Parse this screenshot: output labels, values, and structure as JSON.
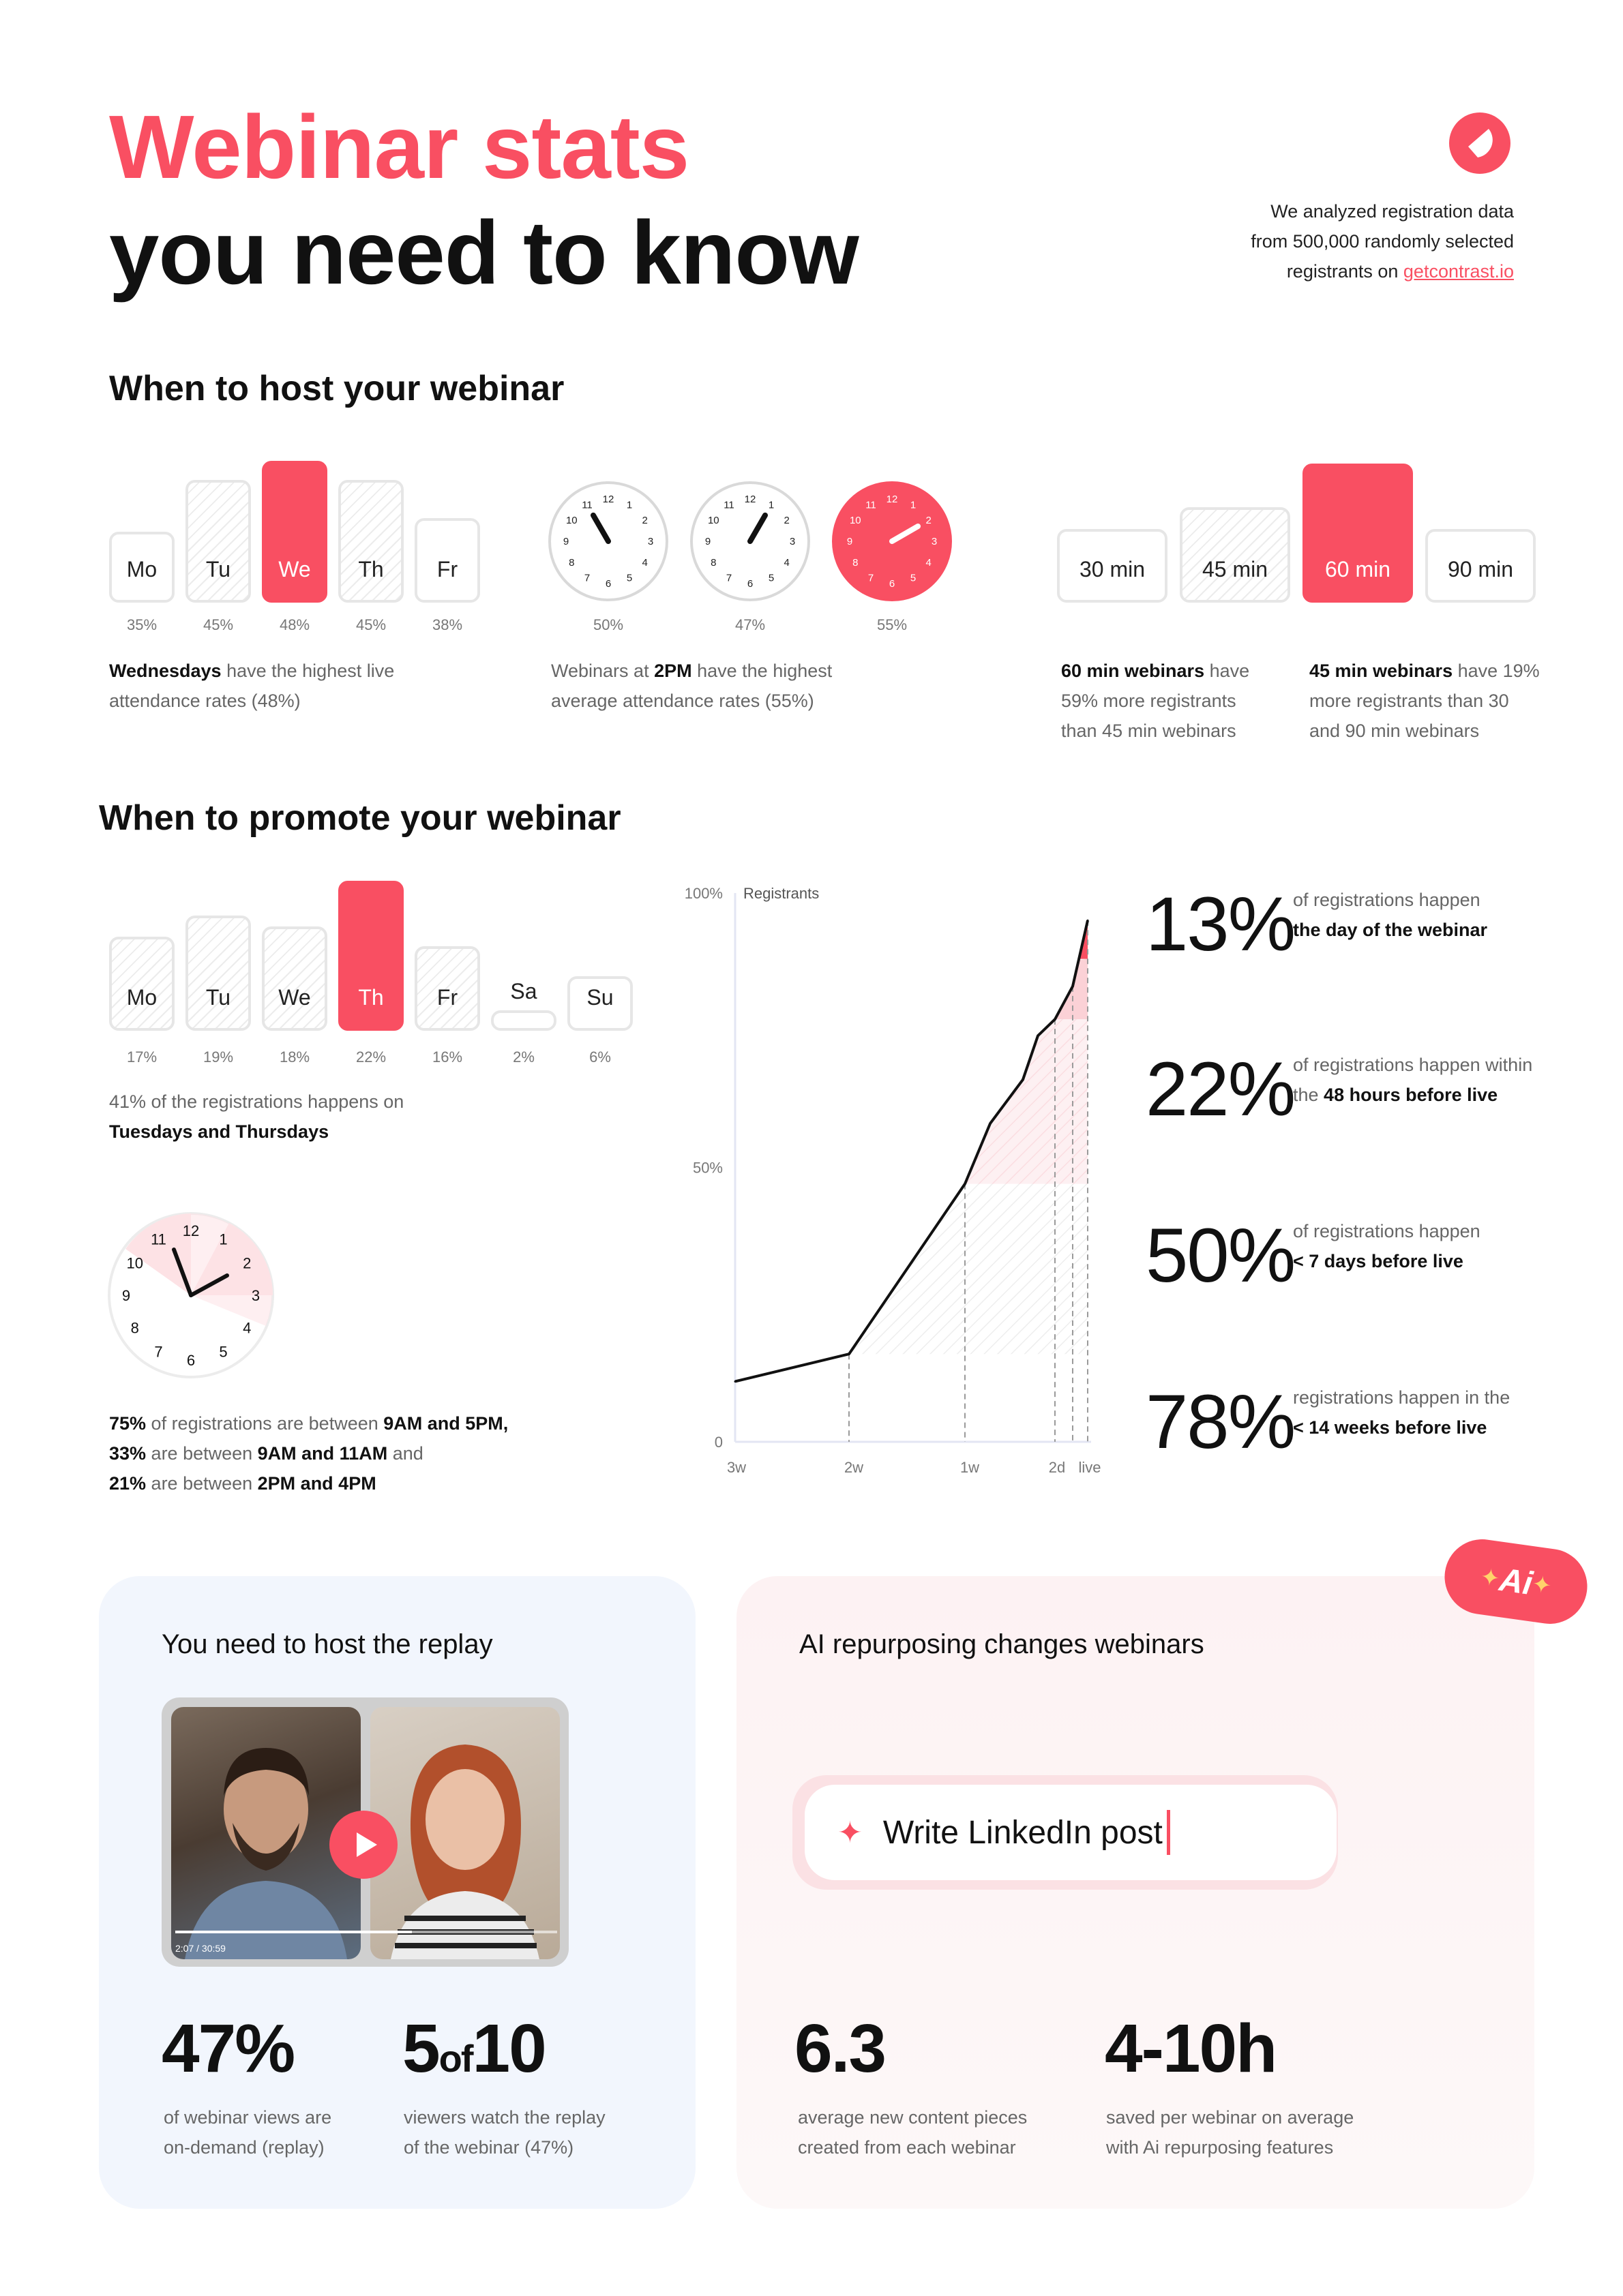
{
  "header": {
    "title_line1": "Webinar stats",
    "title_line2": "you need to know",
    "intro_line1": "We analyzed registration data",
    "intro_line2": "from 500,000 randomly selected",
    "intro_line3_prefix": "registrants on ",
    "intro_link": "getcontrast.io",
    "brand_color": "#f94f62"
  },
  "host": {
    "heading": "When to host your webinar",
    "days": [
      {
        "label": "Mo",
        "pct": "35%",
        "value": 35,
        "style": "plain"
      },
      {
        "label": "Tu",
        "pct": "45%",
        "value": 45,
        "style": "hatch"
      },
      {
        "label": "We",
        "pct": "48%",
        "value": 48,
        "style": "hot"
      },
      {
        "label": "Th",
        "pct": "45%",
        "value": 45,
        "style": "hatch"
      },
      {
        "label": "Fr",
        "pct": "38%",
        "value": 38,
        "style": "plain"
      }
    ],
    "days_caption_bold": "Wednesdays",
    "days_caption_rest1": " have the highest live",
    "days_caption_line2": "attendance rates (48%)",
    "clocks": [
      {
        "pct": "50%",
        "hour": 11,
        "minute": 0,
        "hot": false
      },
      {
        "pct": "47%",
        "hour": 1,
        "minute": 0,
        "hot": false
      },
      {
        "pct": "55%",
        "hour": 2,
        "minute": 0,
        "hot": true
      }
    ],
    "clock_caption_pre": "Webinars at ",
    "clock_caption_bold": "2PM",
    "clock_caption_rest": " have the highest",
    "clock_caption_line2": "average attendance rates (55%)",
    "durations": [
      {
        "label": "30 min",
        "value": 30,
        "style": "plain"
      },
      {
        "label": "45 min",
        "value": 45,
        "style": "hatch"
      },
      {
        "label": "60 min",
        "value": 60,
        "style": "hot"
      },
      {
        "label": "90 min",
        "value": 90,
        "style": "plain"
      }
    ],
    "dur_caption1_bold": "60 min webinars",
    "dur_caption1_rest": " have",
    "dur_caption1_line2": "59% more registrants",
    "dur_caption1_line3": "than 45 min webinars",
    "dur_caption2_bold": "45 min webinars",
    "dur_caption2_rest": " have 19%",
    "dur_caption2_line2": "more registrants than 30",
    "dur_caption2_line3": "and 90 min webinars"
  },
  "promote": {
    "heading": "When to promote your webinar",
    "days": [
      {
        "label": "Mo",
        "pct": "17%",
        "value": 17,
        "style": "hatch"
      },
      {
        "label": "Tu",
        "pct": "19%",
        "value": 19,
        "style": "hatch"
      },
      {
        "label": "We",
        "pct": "18%",
        "value": 18,
        "style": "hatch"
      },
      {
        "label": "Th",
        "pct": "22%",
        "value": 22,
        "style": "hot"
      },
      {
        "label": "Fr",
        "pct": "16%",
        "value": 16,
        "style": "hatch"
      },
      {
        "label": "Sa",
        "pct": "2%",
        "value": 2,
        "style": "plain"
      },
      {
        "label": "Su",
        "pct": "6%",
        "value": 6,
        "style": "plain"
      }
    ],
    "days_caption_line1": "41% of the registrations happens on",
    "days_caption_bold": "Tuesdays and Thursdays",
    "clock_caption": [
      [
        {
          "b": "75%"
        },
        {
          "t": " of registrations are between "
        },
        {
          "b": "9AM and 5PM,"
        }
      ],
      [
        {
          "b": "33%"
        },
        {
          "t": " are between "
        },
        {
          "b": "9AM and 11AM"
        },
        {
          "t": " and"
        }
      ],
      [
        {
          "b": "21%"
        },
        {
          "t": " are between "
        },
        {
          "b": "2PM and 4PM"
        }
      ]
    ],
    "stats": [
      {
        "value": "13%",
        "line1": "of registrations happen",
        "line2_pre": "",
        "line2_bold": "the day of the webinar"
      },
      {
        "value": "22%",
        "line1": "of registrations happen within",
        "line2_pre": "the ",
        "line2_bold": "48 hours before live"
      },
      {
        "value": "50%",
        "line1": "of registrations happen",
        "line2_pre": "",
        "line2_bold": "< 7 days before live"
      },
      {
        "value": "78%",
        "line1": "registrations happen in the",
        "line2_pre": "",
        "line2_bold": "< 14 weeks before live"
      }
    ]
  },
  "chart_data": {
    "type": "line",
    "title": "",
    "series_label": "Registrants",
    "y_ticks": [
      "100%",
      "50%",
      "0"
    ],
    "x_ticks": [
      "3w",
      "2w",
      "1w",
      "2d",
      "live"
    ],
    "ylim": [
      0,
      100
    ],
    "points": [
      {
        "x": "3w",
        "y": 11
      },
      {
        "x": "2w",
        "y": 16
      },
      {
        "x": "1w",
        "y": 47
      },
      {
        "x": "6d",
        "y": 58
      },
      {
        "x": "4d",
        "y": 66
      },
      {
        "x": "3d",
        "y": 74
      },
      {
        "x": "2d",
        "y": 77
      },
      {
        "x": "1d",
        "y": 83
      },
      {
        "x": "live",
        "y": 95
      }
    ]
  },
  "replay": {
    "heading": "You need to host the replay",
    "stat1": "47%",
    "stat1_line1": "of webinar views are",
    "stat1_line2": "on-demand (replay)",
    "stat2_a": "5",
    "stat2_of": "of",
    "stat2_b": "10",
    "stat2_line1": "viewers watch the replay",
    "stat2_line2": "of the webinar (47%)",
    "video_time": "2:07 / 30:59"
  },
  "ai": {
    "badge": "Ai",
    "heading": "AI repurposing changes webinars",
    "prompt": "Write LinkedIn post",
    "stat1": "6.3",
    "stat1_line1": "average new content pieces",
    "stat1_line2": "created from each webinar",
    "stat2": "4-10h",
    "stat2_line1": "saved per webinar on average",
    "stat2_line2": "with Ai repurposing features"
  }
}
